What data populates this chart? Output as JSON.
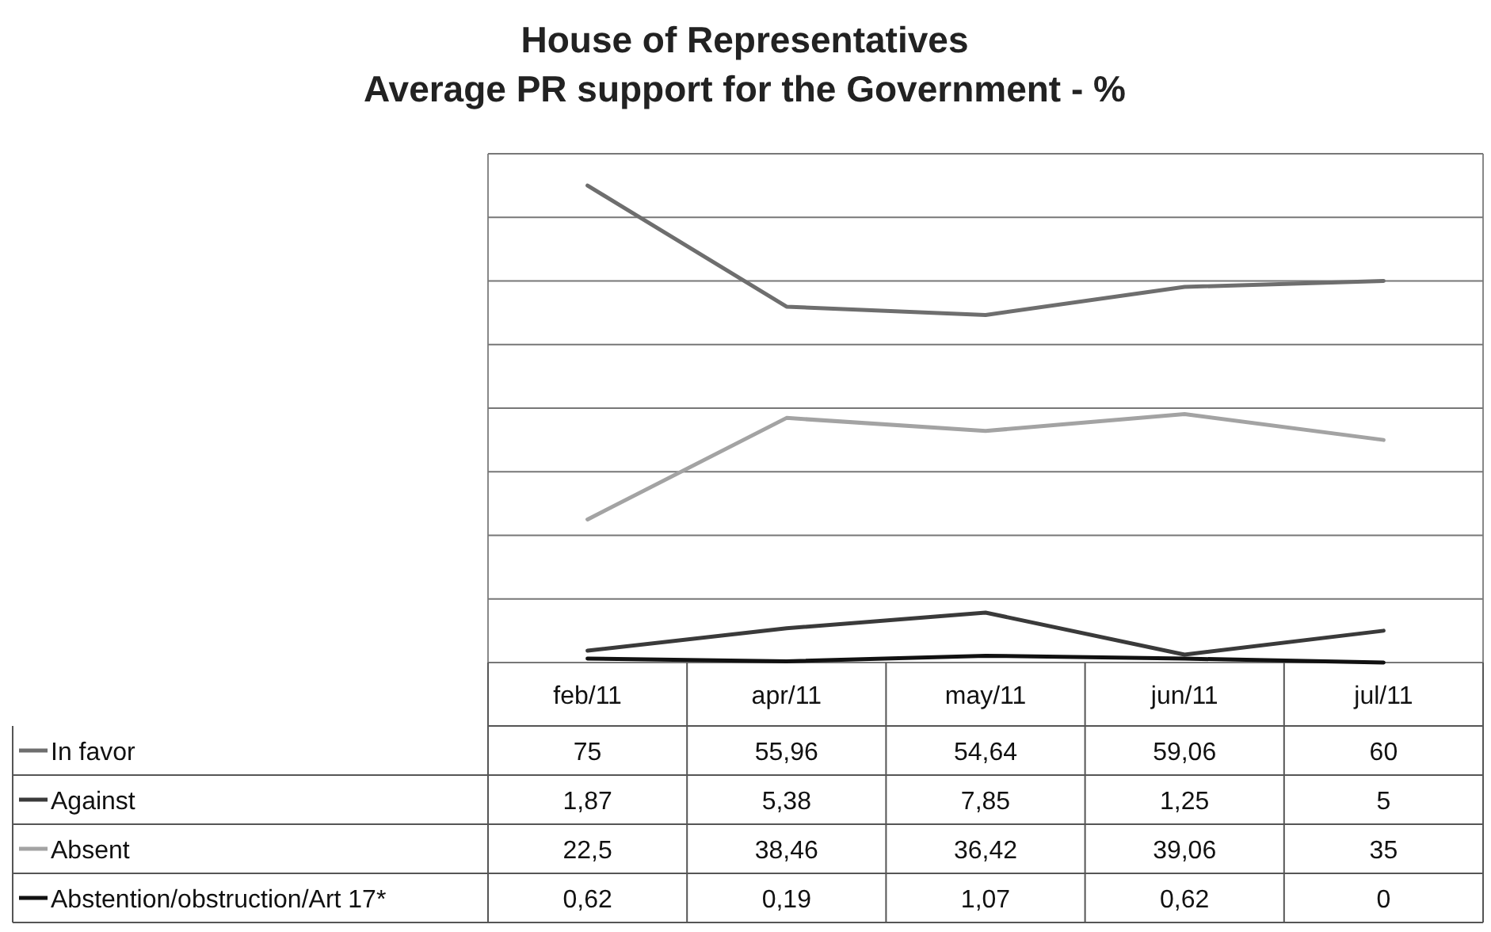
{
  "chart_data": {
    "type": "line",
    "title": "House of Representatives",
    "subtitle": "Average PR support for the Government - %",
    "categories": [
      "feb/11",
      "apr/11",
      "may/11",
      "jun/11",
      "jul/11"
    ],
    "ylim": [
      0,
      80
    ],
    "yticks": [
      {
        "value": 0,
        "label": null
      },
      {
        "value": 10,
        "label": null
      },
      {
        "value": 20,
        "label": null
      },
      {
        "value": 30,
        "label": null
      },
      {
        "value": 40,
        "label": null
      },
      {
        "value": 50,
        "label": null
      },
      {
        "value": 60,
        "label": null
      },
      {
        "value": 70,
        "label": null
      },
      {
        "value": 80,
        "label": null
      }
    ],
    "grid": "y",
    "legend": "bottom left",
    "tick_labels": "x",
    "marker": "none",
    "series": [
      {
        "name": "In favor",
        "color": "#6e6e6e",
        "values": [
          75,
          55.96,
          54.64,
          59.06,
          60
        ],
        "value_labels": [
          "75",
          "55,96",
          "54,64",
          "59,06",
          "60"
        ]
      },
      {
        "name": "Against",
        "color": "#3a3a3a",
        "values": [
          1.87,
          5.38,
          7.85,
          1.25,
          5
        ],
        "value_labels": [
          "1,87",
          "5,38",
          "7,85",
          "1,25",
          "5"
        ]
      },
      {
        "name": "Absent",
        "color": "#a3a3a3",
        "values": [
          22.5,
          38.46,
          36.42,
          39.06,
          35
        ],
        "value_labels": [
          "22,5",
          "38,46",
          "36,42",
          "39,06",
          "35"
        ]
      },
      {
        "name": "Abstention/obstruction/Art 17*",
        "color": "#111111",
        "values": [
          0.62,
          0.19,
          1.07,
          0.62,
          0
        ],
        "value_labels": [
          "0,62",
          "0,19",
          "1,07",
          "0,62",
          "0"
        ]
      }
    ]
  }
}
